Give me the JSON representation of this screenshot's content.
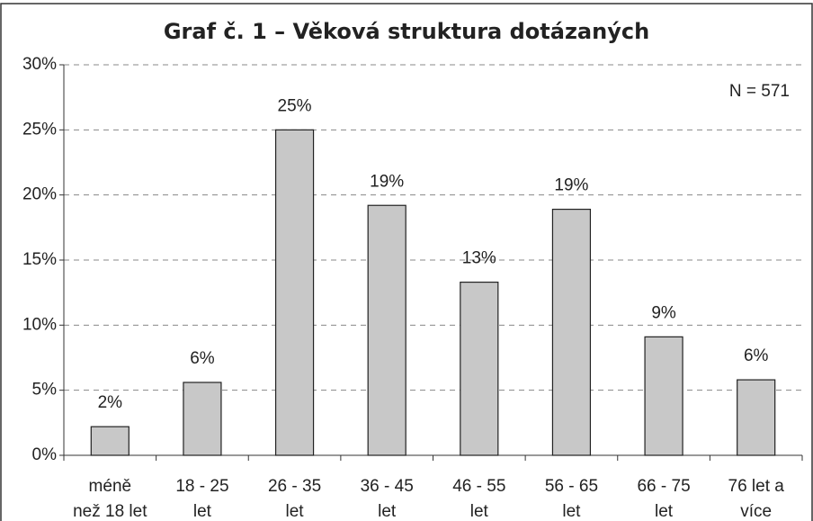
{
  "chart_data": {
    "type": "bar",
    "title": "Graf č. 1 – Věková struktura dotázaných",
    "annotation": "N = 571",
    "categories": [
      [
        "méně",
        "než 18 let"
      ],
      [
        "18 - 25",
        "let"
      ],
      [
        "26 - 35",
        "let"
      ],
      [
        "36 - 45",
        "let"
      ],
      [
        "46 - 55",
        "let"
      ],
      [
        "56 - 65",
        "let"
      ],
      [
        "66 - 75",
        "let"
      ],
      [
        "76 let a",
        "více"
      ]
    ],
    "values": [
      2.2,
      5.6,
      25,
      19.2,
      13.3,
      18.9,
      9.1,
      5.8
    ],
    "value_labels": [
      "2%",
      "6%",
      "25%",
      "19%",
      "13%",
      "19%",
      "9%",
      "6%"
    ],
    "color": "#c8c8c8",
    "ylim": [
      0,
      30
    ],
    "yticks": [
      {
        "value": 0,
        "label": "0%"
      },
      {
        "value": 5,
        "label": "5%"
      },
      {
        "value": 10,
        "label": "10%"
      },
      {
        "value": 15,
        "label": "15%"
      },
      {
        "value": 20,
        "label": "20%"
      },
      {
        "value": 25,
        "label": "25%"
      },
      {
        "value": 30,
        "label": "30%"
      }
    ],
    "grid": true
  }
}
